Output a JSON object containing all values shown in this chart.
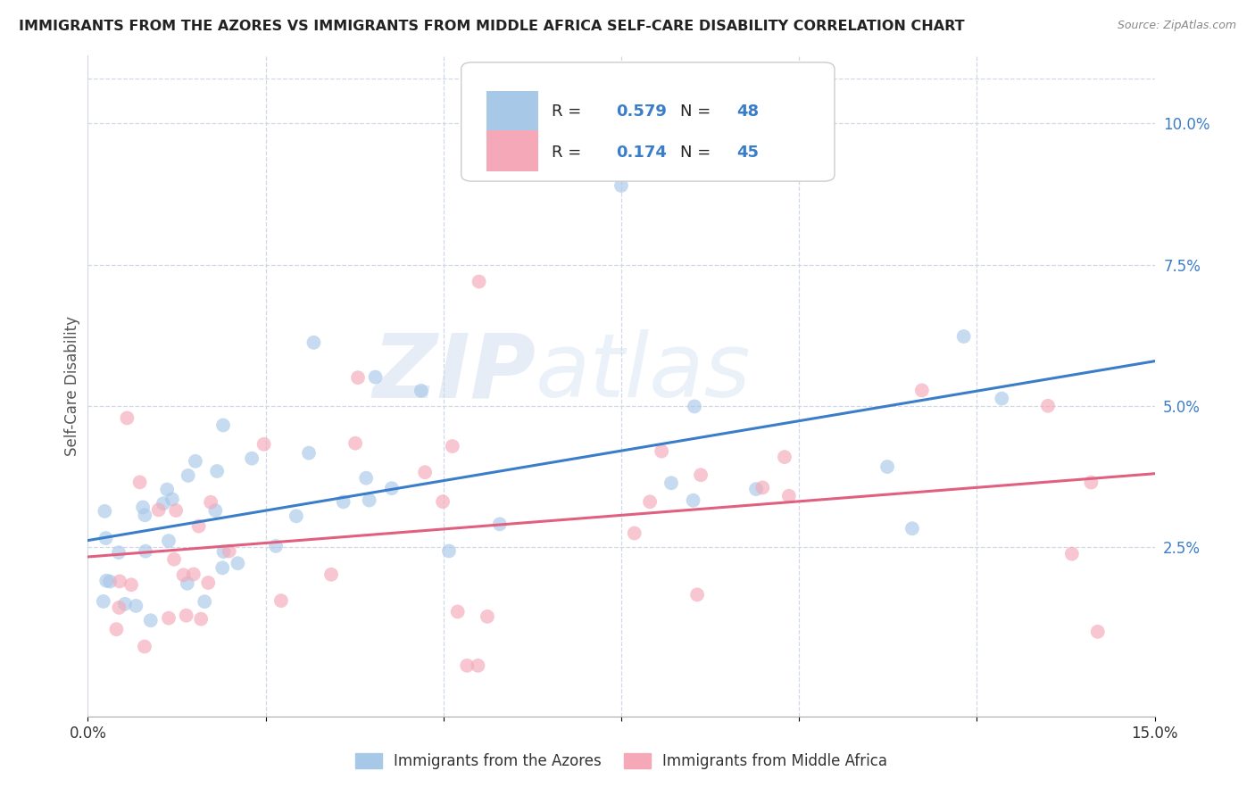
{
  "title": "IMMIGRANTS FROM THE AZORES VS IMMIGRANTS FROM MIDDLE AFRICA SELF-CARE DISABILITY CORRELATION CHART",
  "source": "Source: ZipAtlas.com",
  "ylabel": "Self-Care Disability",
  "xlim": [
    0.0,
    0.15
  ],
  "ylim": [
    -0.005,
    0.112
  ],
  "yticks_right": [
    0.025,
    0.05,
    0.075,
    0.1
  ],
  "ytick_labels_right": [
    "2.5%",
    "5.0%",
    "7.5%",
    "10.0%"
  ],
  "blue_R": 0.579,
  "blue_N": 48,
  "pink_R": 0.174,
  "pink_N": 45,
  "blue_scatter_color": "#a8c8e8",
  "pink_scatter_color": "#f4a8b8",
  "blue_line_color": "#3a7dc9",
  "pink_line_color": "#e06080",
  "legend_text_color": "#3a7dc9",
  "legend_label_blue": "Immigrants from the Azores",
  "legend_label_pink": "Immigrants from Middle Africa",
  "watermark_text": "ZIPatlas",
  "background_color": "#ffffff",
  "grid_color": "#d0d8e8",
  "axis_label_color": "#555555",
  "title_color": "#222222",
  "source_color": "#888888"
}
